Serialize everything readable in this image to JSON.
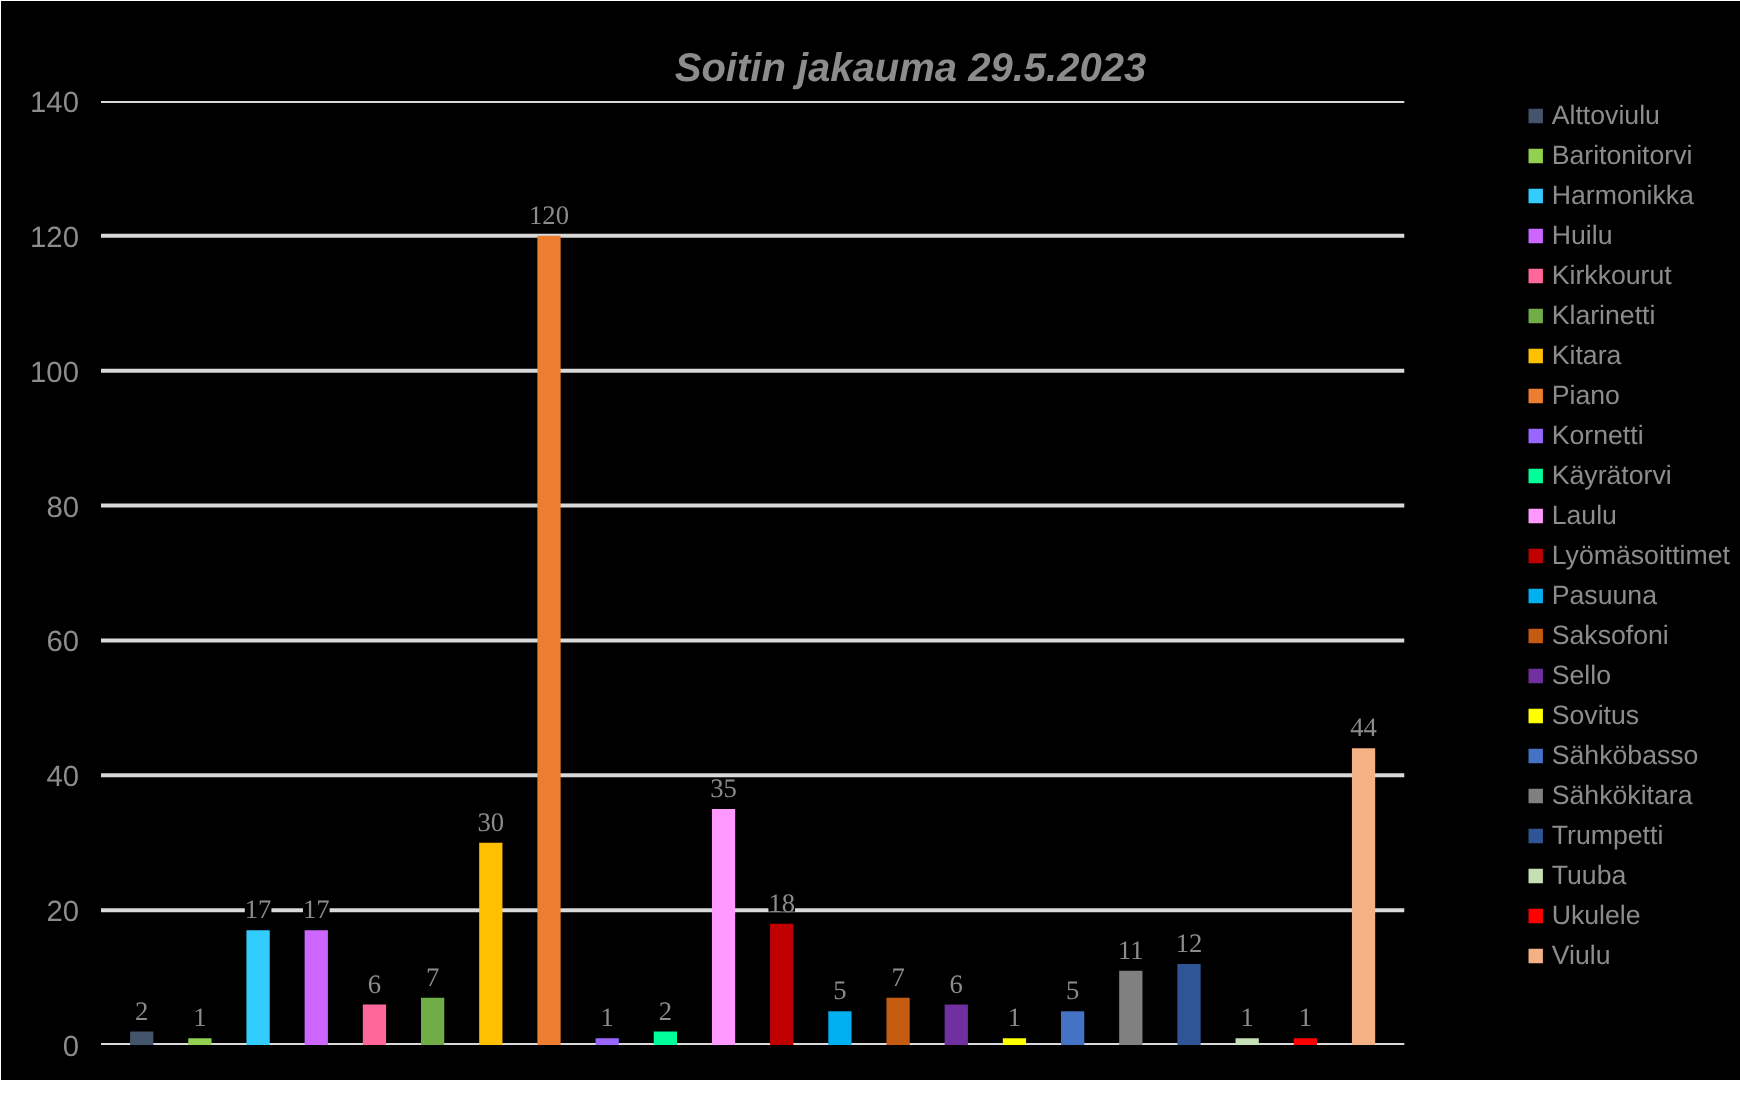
{
  "chart_data": {
    "type": "bar",
    "title": "Soitin jakauma  29.5.2023",
    "categories": [
      null,
      null,
      null,
      null,
      null,
      null,
      null,
      null,
      null,
      null,
      null,
      null,
      null,
      null,
      null,
      null,
      null,
      null,
      null,
      null,
      null,
      null
    ],
    "series": [
      {
        "name": "Alttoviulu",
        "color": "#44546a",
        "values": [
          2,
          null,
          null,
          null,
          null,
          null,
          null,
          null,
          null,
          null,
          null,
          null,
          null,
          null,
          null,
          null,
          null,
          null,
          null,
          null,
          null,
          null
        ]
      },
      {
        "name": "Baritonitorvi",
        "color": "#92d050",
        "values": [
          null,
          1,
          null,
          null,
          null,
          null,
          null,
          null,
          null,
          null,
          null,
          null,
          null,
          null,
          null,
          null,
          null,
          null,
          null,
          null,
          null,
          null
        ]
      },
      {
        "name": "Harmonikka",
        "color": "#33ccff",
        "values": [
          null,
          null,
          17,
          null,
          null,
          null,
          null,
          null,
          null,
          null,
          null,
          null,
          null,
          null,
          null,
          null,
          null,
          null,
          null,
          null,
          null,
          null
        ]
      },
      {
        "name": "Huilu",
        "color": "#cc66ff",
        "values": [
          null,
          null,
          null,
          17,
          null,
          null,
          null,
          null,
          null,
          null,
          null,
          null,
          null,
          null,
          null,
          null,
          null,
          null,
          null,
          null,
          null,
          null
        ]
      },
      {
        "name": "Kirkkourut",
        "color": "#ff6699",
        "values": [
          null,
          null,
          null,
          null,
          6,
          null,
          null,
          null,
          null,
          null,
          null,
          null,
          null,
          null,
          null,
          null,
          null,
          null,
          null,
          null,
          null,
          null
        ]
      },
      {
        "name": "Klarinetti",
        "color": "#70ad47",
        "values": [
          null,
          null,
          null,
          null,
          null,
          7,
          null,
          null,
          null,
          null,
          null,
          null,
          null,
          null,
          null,
          null,
          null,
          null,
          null,
          null,
          null,
          null
        ]
      },
      {
        "name": "Kitara",
        "color": "#ffc000",
        "values": [
          null,
          null,
          null,
          null,
          null,
          null,
          30,
          null,
          null,
          null,
          null,
          null,
          null,
          null,
          null,
          null,
          null,
          null,
          null,
          null,
          null,
          null
        ]
      },
      {
        "name": "Piano",
        "color": "#ed7d31",
        "values": [
          null,
          null,
          null,
          null,
          null,
          null,
          null,
          120,
          null,
          null,
          null,
          null,
          null,
          null,
          null,
          null,
          null,
          null,
          null,
          null,
          null,
          null
        ]
      },
      {
        "name": "Kornetti",
        "color": "#9966ff",
        "values": [
          null,
          null,
          null,
          null,
          null,
          null,
          null,
          null,
          1,
          null,
          null,
          null,
          null,
          null,
          null,
          null,
          null,
          null,
          null,
          null,
          null,
          null
        ]
      },
      {
        "name": "Käyrätorvi",
        "color": "#00ff99",
        "values": [
          null,
          null,
          null,
          null,
          null,
          null,
          null,
          null,
          null,
          2,
          null,
          null,
          null,
          null,
          null,
          null,
          null,
          null,
          null,
          null,
          null,
          null
        ]
      },
      {
        "name": "Laulu",
        "color": "#ff99ff",
        "values": [
          null,
          null,
          null,
          null,
          null,
          null,
          null,
          null,
          null,
          null,
          35,
          null,
          null,
          null,
          null,
          null,
          null,
          null,
          null,
          null,
          null,
          null
        ]
      },
      {
        "name": "Lyömäsoittimet",
        "color": "#c00000",
        "values": [
          null,
          null,
          null,
          null,
          null,
          null,
          null,
          null,
          null,
          null,
          null,
          18,
          null,
          null,
          null,
          null,
          null,
          null,
          null,
          null,
          null,
          null
        ]
      },
      {
        "name": "Pasuuna",
        "color": "#00b0f0",
        "values": [
          null,
          null,
          null,
          null,
          null,
          null,
          null,
          null,
          null,
          null,
          null,
          null,
          5,
          null,
          null,
          null,
          null,
          null,
          null,
          null,
          null,
          null
        ]
      },
      {
        "name": "Saksofoni",
        "color": "#c55a11",
        "values": [
          null,
          null,
          null,
          null,
          null,
          null,
          null,
          null,
          null,
          null,
          null,
          null,
          null,
          7,
          null,
          null,
          null,
          null,
          null,
          null,
          null,
          null
        ]
      },
      {
        "name": "Sello",
        "color": "#7030a0",
        "values": [
          null,
          null,
          null,
          null,
          null,
          null,
          null,
          null,
          null,
          null,
          null,
          null,
          null,
          null,
          6,
          null,
          null,
          null,
          null,
          null,
          null,
          null
        ]
      },
      {
        "name": "Sovitus",
        "color": "#ffff00",
        "values": [
          null,
          null,
          null,
          null,
          null,
          null,
          null,
          null,
          null,
          null,
          null,
          null,
          null,
          null,
          null,
          1,
          null,
          null,
          null,
          null,
          null,
          null
        ]
      },
      {
        "name": "Sähköbasso",
        "color": "#4472c4",
        "values": [
          null,
          null,
          null,
          null,
          null,
          null,
          null,
          null,
          null,
          null,
          null,
          null,
          null,
          null,
          null,
          null,
          5,
          null,
          null,
          null,
          null,
          null
        ]
      },
      {
        "name": "Sähkökitara",
        "color": "#808080",
        "values": [
          null,
          null,
          null,
          null,
          null,
          null,
          null,
          null,
          null,
          null,
          null,
          null,
          null,
          null,
          null,
          null,
          null,
          11,
          null,
          null,
          null,
          null
        ]
      },
      {
        "name": "Trumpetti",
        "color": "#2f5597",
        "values": [
          null,
          null,
          null,
          null,
          null,
          null,
          null,
          null,
          null,
          null,
          null,
          null,
          null,
          null,
          null,
          null,
          null,
          null,
          12,
          null,
          null,
          null
        ]
      },
      {
        "name": "Tuuba",
        "color": "#c5e0b4",
        "values": [
          null,
          null,
          null,
          null,
          null,
          null,
          null,
          null,
          null,
          null,
          null,
          null,
          null,
          null,
          null,
          null,
          null,
          null,
          null,
          1,
          null,
          null
        ]
      },
      {
        "name": "Ukulele",
        "color": "#ff0000",
        "values": [
          null,
          null,
          null,
          null,
          null,
          null,
          null,
          null,
          null,
          null,
          null,
          null,
          null,
          null,
          null,
          null,
          null,
          null,
          null,
          null,
          1,
          null
        ]
      },
      {
        "name": "Viulu",
        "color": "#f4b183",
        "values": [
          null,
          null,
          null,
          null,
          null,
          null,
          null,
          null,
          null,
          null,
          null,
          null,
          null,
          null,
          null,
          null,
          null,
          null,
          null,
          null,
          null,
          44
        ]
      }
    ],
    "ylim": [
      0,
      140
    ],
    "yticks": [
      0,
      20,
      40,
      60,
      80,
      100,
      120,
      140
    ],
    "grid": "y",
    "legend": "right",
    "data_labels": true,
    "tick_labels": "y"
  }
}
